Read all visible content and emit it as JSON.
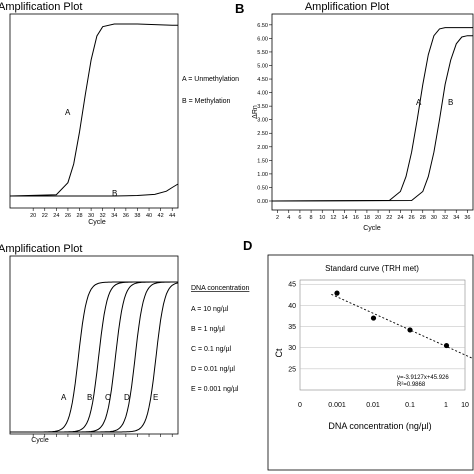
{
  "chart_data": [
    {
      "panel": "A",
      "type": "line",
      "title": "Amplification Plot",
      "xlabel": "Cycle",
      "ylabel": "",
      "x_ticks": [
        20,
        22,
        24,
        26,
        28,
        30,
        32,
        34,
        36,
        38,
        40,
        42,
        44
      ],
      "xlim": [
        16,
        45
      ],
      "ylim": [
        0,
        6.6
      ],
      "series": [
        {
          "name": "A",
          "x": [
            16,
            24,
            26,
            27,
            28,
            29,
            30,
            31,
            32,
            34,
            38,
            44,
            45
          ],
          "values": [
            0,
            0.05,
            0.5,
            1.2,
            2.4,
            3.8,
            5.1,
            6.0,
            6.35,
            6.45,
            6.45,
            6.4,
            6.4
          ]
        },
        {
          "name": "B",
          "x": [
            16,
            34,
            38,
            41,
            43,
            44,
            45
          ],
          "values": [
            0,
            0,
            0.02,
            0.06,
            0.18,
            0.32,
            0.45
          ]
        }
      ],
      "legend": [
        "A = Unmethylation",
        "B = Methylation"
      ],
      "grid": false
    },
    {
      "panel": "B",
      "type": "line",
      "title": "Amplification Plot",
      "xlabel": "Cycle",
      "ylabel": "ΔRn",
      "x_ticks": [
        2,
        4,
        6,
        8,
        10,
        12,
        14,
        16,
        18,
        20,
        22,
        24,
        26,
        28,
        30,
        32,
        34,
        36
      ],
      "y_ticks": [
        "0.00",
        "0.50",
        "1.00",
        "1.50",
        "2.00",
        "2.50",
        "3.00",
        "3.50",
        "4.00",
        "4.50",
        "5.00",
        "5.50",
        "6.00",
        "6.50"
      ],
      "xlim": [
        1,
        37
      ],
      "ylim": [
        0,
        6.9
      ],
      "series": [
        {
          "name": "A",
          "x": [
            1,
            22,
            24,
            25,
            26,
            27,
            28,
            29,
            30,
            31,
            32,
            34,
            37
          ],
          "values": [
            0,
            0.02,
            0.35,
            0.9,
            1.8,
            3.0,
            4.3,
            5.4,
            6.1,
            6.35,
            6.4,
            6.4,
            6.4
          ]
        },
        {
          "name": "B",
          "x": [
            1,
            26,
            28,
            29,
            30,
            31,
            32,
            33,
            34,
            35,
            36,
            37
          ],
          "values": [
            0,
            0.02,
            0.35,
            0.9,
            1.8,
            3.0,
            4.3,
            5.2,
            5.8,
            6.05,
            6.1,
            6.1
          ]
        }
      ],
      "grid": false
    },
    {
      "panel": "C",
      "type": "line",
      "title": "Amplification Plot",
      "xlabel": "Cycle",
      "ylabel": "",
      "x_ticks": [
        20,
        22,
        24,
        26,
        28,
        30,
        32,
        34,
        36,
        38,
        40,
        42,
        44
      ],
      "xlim": [
        16,
        45
      ],
      "ylim": [
        0,
        1
      ],
      "series": [
        {
          "name": "A",
          "mid": 27.8
        },
        {
          "name": "B",
          "mid": 31.3
        },
        {
          "name": "C",
          "mid": 34.2
        },
        {
          "name": "D",
          "mid": 37.6
        },
        {
          "name": "E",
          "mid": 41.2
        }
      ],
      "legend_title": "DNA concentration",
      "legend": [
        "A = 10 ng/µl",
        "B = 1 ng/µl",
        "C = 0.1 ng/µl",
        "D = 0.01 ng/µl",
        "E = 0.001 ng/µl"
      ],
      "grid": false
    },
    {
      "panel": "D",
      "type": "scatter",
      "title": "Standard curve (TRH met)",
      "xlabel": "DNA concentration (ng/µl)",
      "ylabel": "Ct",
      "x_tick_labels": [
        "0",
        "0.001",
        "0.01",
        "0.1",
        "1",
        "10"
      ],
      "y_ticks": [
        25,
        30,
        35,
        40,
        45
      ],
      "ylim": [
        20,
        46
      ],
      "points": [
        {
          "x": 0.001,
          "y": 42.9
        },
        {
          "x": 0.01,
          "y": 37.0
        },
        {
          "x": 0.1,
          "y": 34.2
        },
        {
          "x": 1,
          "y": 30.5
        }
      ],
      "fit": {
        "slope": -3.9127,
        "intercept": 45.926
      },
      "equation": "y=-3.9127x+45.926",
      "r2": "R²=0.9868",
      "grid": true
    }
  ],
  "panels": {
    "A": {
      "letter": "",
      "title": "Amplification Plot",
      "xlabel": "Cycle",
      "curve_labels": [
        "A",
        "B"
      ],
      "legend": [
        "A = Unmethylation",
        "B = Methylation"
      ]
    },
    "B": {
      "letter": "B",
      "title": "Amplification Plot",
      "xlabel": "Cycle",
      "ylabel": "ΔRn",
      "curve_labels": [
        "A",
        "B"
      ]
    },
    "C": {
      "letter": "",
      "title": "Amplification Plot",
      "xlabel": "Cycle",
      "curve_labels": [
        "A",
        "B",
        "C",
        "D",
        "E"
      ],
      "legend_title": "DNA concentration",
      "legend": [
        "A = 10 ng/µl",
        "B = 1 ng/µl",
        "C = 0.1 ng/µl",
        "D = 0.01 ng/µl",
        "E = 0.001 ng/µl"
      ]
    },
    "D": {
      "letter": "D",
      "title": "Standard curve (TRH met)",
      "xlabel": "DNA concentration (ng/µl)",
      "ylabel": "Ct",
      "equation": "y=-3.9127x+45.926",
      "r2": "R²=0.9868"
    }
  }
}
